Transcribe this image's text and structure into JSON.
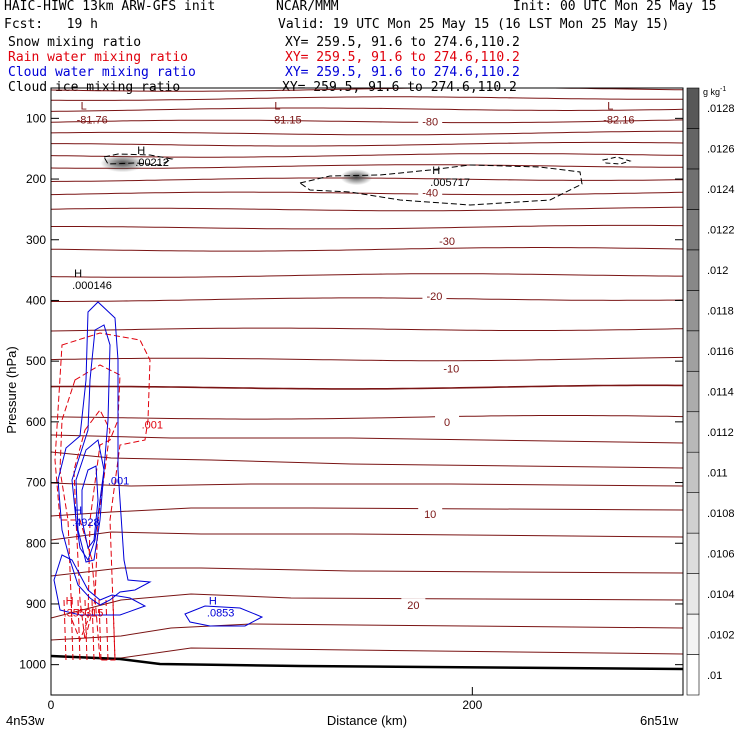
{
  "header": {
    "model": "HAIC-HIWC 13km ARW-GFS init",
    "org": "NCAR/MMM",
    "init": "Init: 00 UTC Mon 25 May 15",
    "fcst": "Fcst:   19 h",
    "valid": "Valid: 19 UTC Mon 25 May 15 (16 LST Mon 25 May 15)",
    "fields": [
      {
        "name": "Snow mixing ratio",
        "xy": "XY= 259.5, 91.6 to 274.6,110.2",
        "color": "#000000"
      },
      {
        "name": "Rain water mixing ratio",
        "xy": "XY= 259.5, 91.6 to 274.6,110.2",
        "color": "#e0000c"
      },
      {
        "name": "Cloud water mixing ratio",
        "xy": "XY= 259.5, 91.6 to 274.6,110.2",
        "color": "#0000d8"
      },
      {
        "name": "Cloud ice mixing ratio",
        "xy": "XY= 259.5, 91.6 to 274.6,110.2",
        "color": "#000000"
      }
    ]
  },
  "chart_data": {
    "type": "contour",
    "xlabel": "Distance (km)",
    "ylabel": "Pressure (hPa)",
    "x_ticks": [
      0,
      200
    ],
    "xlim": [
      0,
      300
    ],
    "y_ticks": [
      100,
      200,
      300,
      400,
      500,
      600,
      700,
      800,
      900,
      1000
    ],
    "ylim": [
      1050,
      50
    ],
    "x_end_labels": [
      "4n53w",
      "6n51w"
    ],
    "colorbar": {
      "unit": "g kg",
      "unit_exp": "-1",
      "levels": [
        ".01",
        ".0102",
        ".0104",
        ".0106",
        ".0108",
        ".011",
        ".0112",
        ".0114",
        ".0116",
        ".0118",
        ".012",
        ".0122",
        ".0124",
        ".0126",
        ".0128"
      ],
      "colors": [
        "#ffffff",
        "#f4f4f4",
        "#e8e8e8",
        "#dcdcdc",
        "#d0d0d0",
        "#c4c4c4",
        "#b8b8b8",
        "#acacac",
        "#a0a0a0",
        "#949494",
        "#888888",
        "#7c7c7c",
        "#707070",
        "#646464",
        "#585858"
      ]
    },
    "temperature_contours": {
      "color": "#7a1414",
      "labels": [
        {
          "text": "-80",
          "x": 180,
          "p": 105
        },
        {
          "text": "-40",
          "x": 180,
          "p": 222
        },
        {
          "text": "-30",
          "x": 188,
          "p": 302
        },
        {
          "text": "-20",
          "x": 182,
          "p": 393
        },
        {
          "text": "-10",
          "x": 190,
          "p": 512
        },
        {
          "text": "0",
          "x": 188,
          "p": 600
        },
        {
          "text": "10",
          "x": 180,
          "p": 752
        },
        {
          "text": "20",
          "x": 172,
          "p": 902
        }
      ],
      "lows": [
        {
          "text": "-81.76",
          "x": 15,
          "p": 90
        },
        {
          "text": "-81.15",
          "x": 107,
          "p": 90
        },
        {
          "text": "-82.16",
          "x": 265,
          "p": 90
        }
      ]
    },
    "maxima": [
      {
        "text": ".00212",
        "x": 40,
        "p": 175,
        "color": "#000000"
      },
      {
        "text": ".005717",
        "x": 180,
        "p": 208,
        "color": "#000000"
      },
      {
        "text": ".000146",
        "x": 10,
        "p": 378,
        "color": "#000000"
      },
      {
        "text": ".001",
        "x": 43,
        "p": 608,
        "color": "#e0000c"
      },
      {
        "text": ".001",
        "x": 27,
        "p": 700,
        "color": "#0000d8"
      },
      {
        "text": ".4928",
        "x": 10,
        "p": 768,
        "color": "#0000d8"
      },
      {
        "text": ".355315",
        "x": 6,
        "p": 917,
        "color": "#e0000c"
      },
      {
        "text": ".0853",
        "x": 74,
        "p": 917,
        "color": "#0000d8"
      }
    ]
  }
}
